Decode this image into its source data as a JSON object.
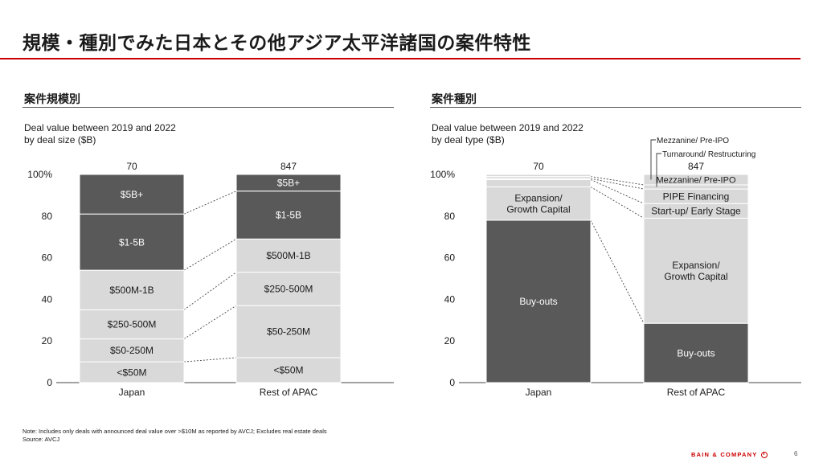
{
  "page": {
    "title": "規模・種別でみた日本とその他アジア太平洋諸国の案件特性",
    "note": "Note: Includes only deals with announced deal value over >$10M as reported by AVCJ; Excludes real estate deals",
    "source": "Source: AVCJ",
    "brand": "BAIN & COMPANY",
    "page_number": "6",
    "colors": {
      "accent": "#cc0000",
      "dark": "#595959",
      "light": "#d9d9d9"
    }
  },
  "left": {
    "section_title": "案件規模別",
    "subtitle_line1": "Deal value between 2019 and 2022",
    "subtitle_line2": "by deal size ($B)"
  },
  "right": {
    "section_title": "案件種別",
    "subtitle_line1": "Deal value between 2019 and 2022",
    "subtitle_line2": "by deal type ($B)"
  },
  "chart_data": [
    {
      "type": "bar",
      "stacked": true,
      "normalized": true,
      "title": "案件規模別",
      "subtitle": "Deal value between 2019 and 2022 by deal size ($B)",
      "categories": [
        "Japan",
        "Rest of APAC"
      ],
      "totals": [
        "70",
        "847"
      ],
      "ylim": [
        0,
        100
      ],
      "yticks": [
        "0",
        "20",
        "40",
        "60",
        "80",
        "100%"
      ],
      "series": [
        {
          "name": "<$50M",
          "values": [
            10,
            12
          ],
          "shade": "light"
        },
        {
          "name": "$50-250M",
          "values": [
            11,
            25
          ],
          "shade": "light"
        },
        {
          "name": "$250-500M",
          "values": [
            14,
            16
          ],
          "shade": "light"
        },
        {
          "name": "$500M-1B",
          "values": [
            19,
            16
          ],
          "shade": "light"
        },
        {
          "name": "$1-5B",
          "values": [
            27,
            23
          ],
          "shade": "dark"
        },
        {
          "name": "$5B+",
          "values": [
            19,
            8
          ],
          "shade": "dark"
        }
      ]
    },
    {
      "type": "bar",
      "stacked": true,
      "normalized": true,
      "title": "案件種別",
      "subtitle": "Deal value between 2019 and 2022 by deal type ($B)",
      "categories": [
        "Japan",
        "Rest of APAC"
      ],
      "totals": [
        "70",
        "847"
      ],
      "ylim": [
        0,
        100
      ],
      "yticks": [
        "0",
        "20",
        "40",
        "60",
        "80",
        "100%"
      ],
      "series": [
        {
          "name": "Buy-outs",
          "values": [
            78,
            28.5
          ],
          "shade": "dark"
        },
        {
          "name": "Expansion/ Growth Capital",
          "values": [
            16,
            50.5
          ],
          "shade": "light"
        },
        {
          "name": "Start-up/ Early Stage",
          "values": [
            3.5,
            7
          ],
          "shade": "light"
        },
        {
          "name": "PIPE Financing",
          "values": [
            0.5,
            7
          ],
          "shade": "light"
        },
        {
          "name": "Turnaround/ Restructuring",
          "values": [
            1,
            2
          ],
          "shade": "light"
        },
        {
          "name": "Mezzanine/ Pre-IPO",
          "values": [
            1,
            5
          ],
          "shade": "light"
        }
      ]
    }
  ]
}
